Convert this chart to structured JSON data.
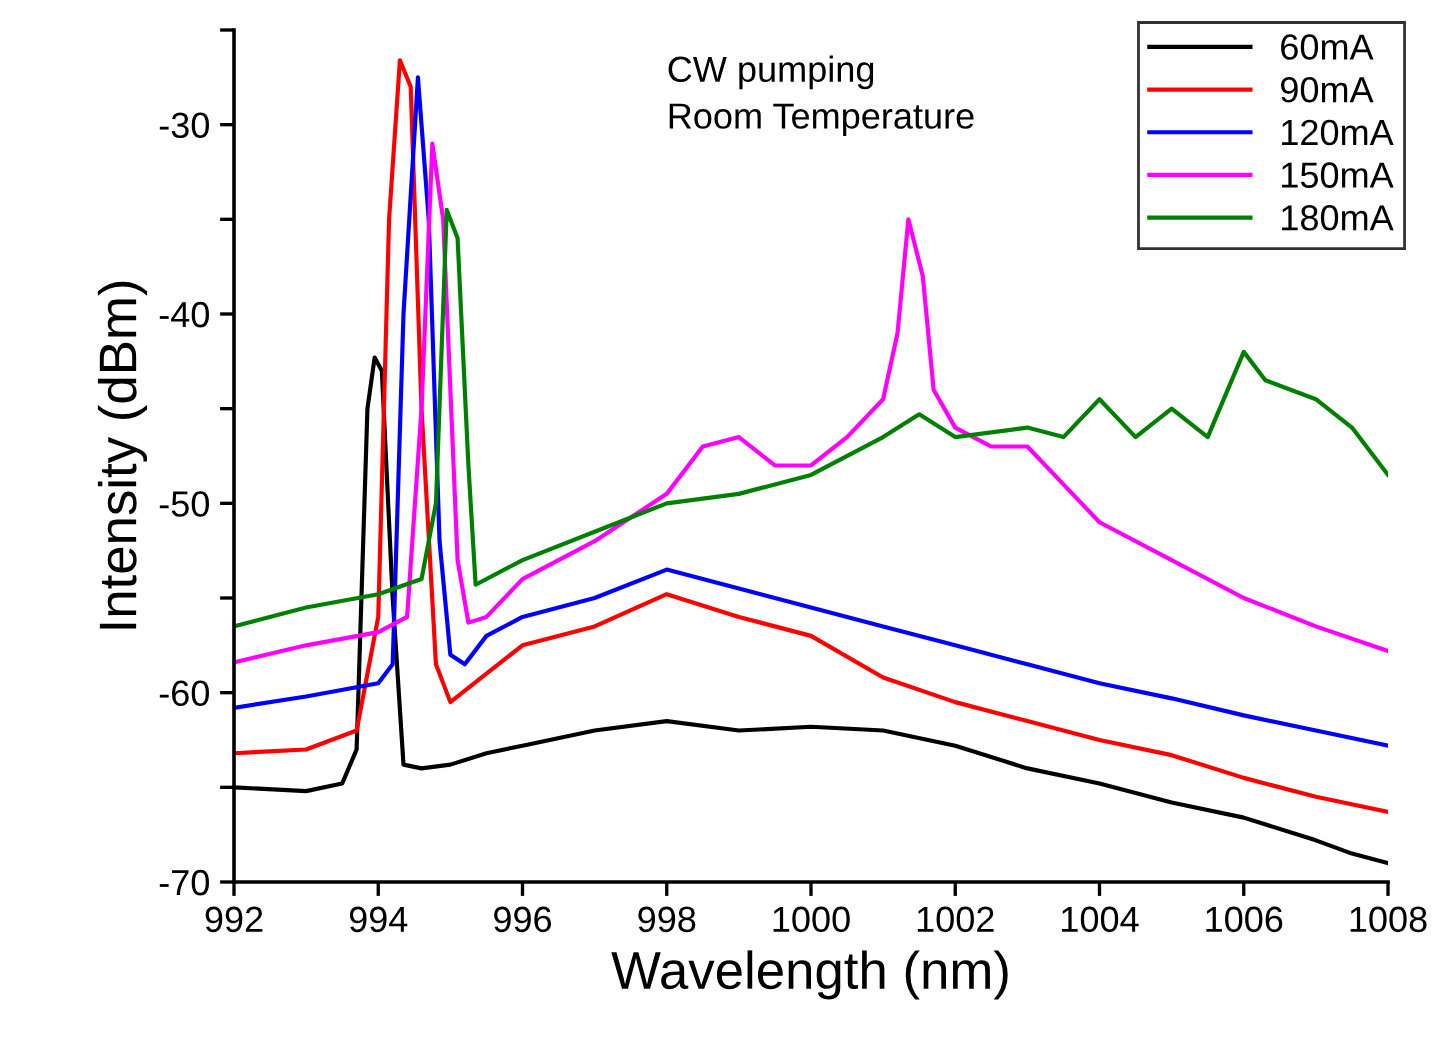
{
  "chart_data": {
    "type": "line",
    "xlabel": "Wavelength (nm)",
    "ylabel": "Intensity (dBm)",
    "annotations": [
      "CW pumping\nRoom Temperature"
    ],
    "xlim": [
      992,
      1008
    ],
    "xticks": [
      992,
      994,
      996,
      998,
      1000,
      1002,
      1004,
      1006,
      1008
    ],
    "ylim": [
      -70,
      -25
    ],
    "yticks": [
      -70,
      {
        "value": -65,
        "label": null
      },
      -60,
      {
        "value": -55,
        "label": null
      },
      -50,
      {
        "value": -45,
        "label": null
      },
      -40,
      {
        "value": -35,
        "label": null
      },
      -30,
      {
        "value": -25,
        "label": null
      }
    ],
    "legend": "top right",
    "grid": false,
    "marker": "none",
    "line_style": "solid",
    "series": [
      {
        "name": "60mA",
        "color": "#000000",
        "x": [
          992,
          993,
          993.5,
          993.7,
          993.85,
          993.95,
          994.05,
          994.2,
          994.35,
          994.6,
          995,
          995.5,
          996,
          997,
          998,
          999,
          1000,
          1001,
          1002,
          1003,
          1004,
          1005,
          1006,
          1007,
          1007.5,
          1008
        ],
        "values": [
          -65,
          -65.2,
          -64.8,
          -63,
          -45,
          -42.3,
          -43,
          -55,
          -63.8,
          -64,
          -63.8,
          -63.2,
          -62.8,
          -62,
          -61.5,
          -62,
          -61.8,
          -62,
          -62.8,
          -64,
          -64.8,
          -65.8,
          -66.6,
          -67.8,
          -68.5,
          -69
        ]
      },
      {
        "name": "90mA",
        "color": "#ff0000",
        "x": [
          992,
          993,
          993.7,
          994.0,
          994.15,
          994.3,
          994.45,
          994.6,
          994.8,
          995,
          995.5,
          996,
          997,
          998,
          999,
          1000,
          1001,
          1002,
          1003,
          1004,
          1005,
          1006,
          1007,
          1008
        ],
        "values": [
          -63.2,
          -63,
          -62,
          -56,
          -35,
          -26.6,
          -28,
          -45,
          -58.5,
          -60.5,
          -59,
          -57.5,
          -56.5,
          -54.8,
          -56,
          -57,
          -59.2,
          -60.5,
          -61.5,
          -62.5,
          -63.3,
          -64.5,
          -65.5,
          -66.3
        ]
      },
      {
        "name": "120mA",
        "color": "#0000ff",
        "x": [
          992,
          993,
          994,
          994.2,
          994.35,
          994.55,
          994.7,
          994.85,
          995,
          995.2,
          995.5,
          996,
          997,
          998,
          999,
          1000,
          1001,
          1002,
          1003,
          1004,
          1005,
          1006,
          1007,
          1008
        ],
        "values": [
          -60.8,
          -60.2,
          -59.5,
          -58.5,
          -40,
          -27.5,
          -35,
          -52,
          -58,
          -58.5,
          -57,
          -56,
          -55,
          -53.5,
          -54.5,
          -55.5,
          -56.5,
          -57.5,
          -58.5,
          -59.5,
          -60.3,
          -61.2,
          -62,
          -62.8
        ]
      },
      {
        "name": "150mA",
        "color": "#ff00ff",
        "x": [
          992,
          993,
          994,
          994.4,
          994.6,
          994.75,
          994.9,
          995.1,
          995.25,
          995.5,
          996,
          997,
          998,
          998.5,
          999,
          999.5,
          1000,
          1000.5,
          1001,
          1001.2,
          1001.35,
          1001.55,
          1001.7,
          1002,
          1002.5,
          1003,
          1003.5,
          1004,
          1005,
          1006,
          1007,
          1008
        ],
        "values": [
          -58.4,
          -57.5,
          -56.8,
          -56,
          -45,
          -31,
          -35,
          -53,
          -56.3,
          -56,
          -54,
          -52,
          -49.5,
          -47,
          -46.5,
          -48,
          -48,
          -46.5,
          -44.5,
          -41,
          -35,
          -38,
          -44,
          -46,
          -47,
          -47,
          -49,
          -51,
          -53,
          -55,
          -56.5,
          -57.8
        ]
      },
      {
        "name": "180mA",
        "color": "#008000",
        "x": [
          992,
          993,
          994,
          994.6,
          994.8,
          994.95,
          995.1,
          995.25,
          995.35,
          996,
          997,
          998,
          999,
          1000,
          1001,
          1001.5,
          1002,
          1003,
          1003.5,
          1004,
          1004.5,
          1005,
          1005.5,
          1006,
          1006.3,
          1007,
          1007.5,
          1008
        ],
        "values": [
          -56.5,
          -55.5,
          -54.8,
          -54,
          -50,
          -34.5,
          -36,
          -48,
          -54.3,
          -53,
          -51.5,
          -50,
          -49.5,
          -48.5,
          -46.5,
          -45.3,
          -46.5,
          -46,
          -46.5,
          -44.5,
          -46.5,
          -45,
          -46.5,
          -42,
          -43.5,
          -44.5,
          -46,
          -48.5
        ]
      }
    ]
  }
}
